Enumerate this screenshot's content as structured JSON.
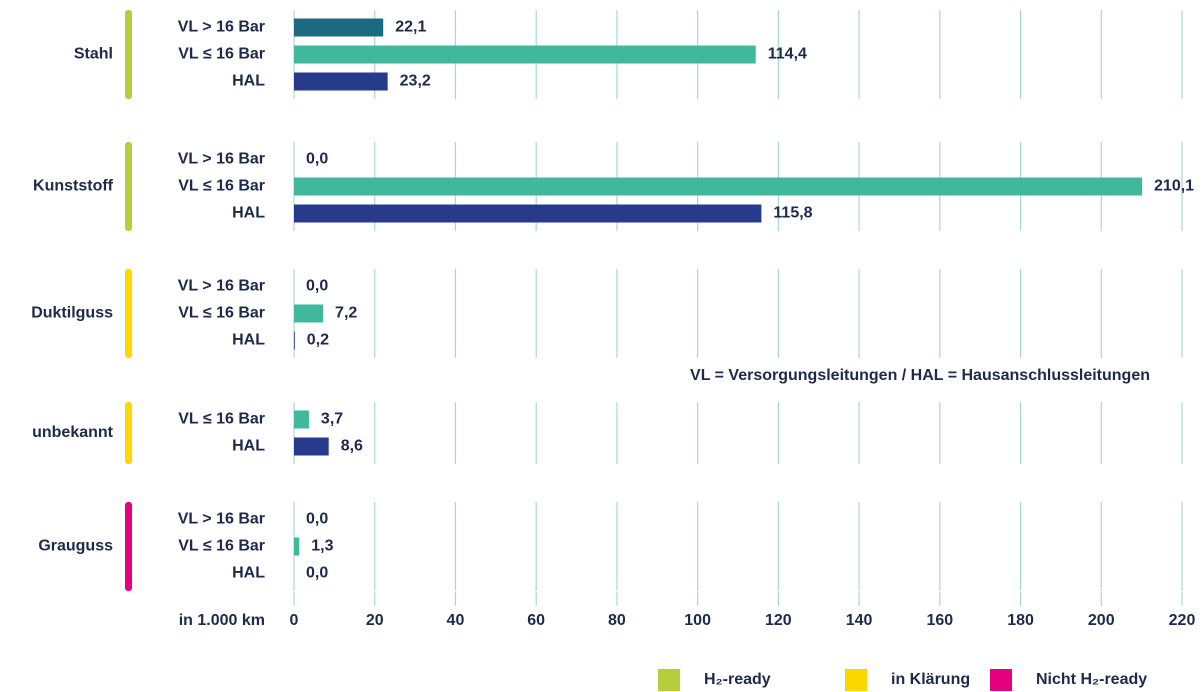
{
  "chart_data": {
    "type": "bar",
    "orientation": "horizontal",
    "groups": [
      {
        "name": "Stahl",
        "color": "#b5cf3a",
        "categories": [
          "VL > 16 Bar",
          "VL ≤ 16 Bar",
          "HAL"
        ],
        "colors": [
          "#1b6a7f",
          "#3fb89b",
          "#283a8c"
        ],
        "values": [
          22.1,
          114.4,
          23.2
        ],
        "value_labels": [
          "22,1",
          "114,4",
          "23,2"
        ]
      },
      {
        "name": "Kunststoff",
        "color": "#b5cf3a",
        "categories": [
          "VL > 16 Bar",
          "VL ≤ 16 Bar",
          "HAL"
        ],
        "colors": [
          "#1b6a7f",
          "#3fb89b",
          "#283a8c"
        ],
        "values": [
          0.0,
          210.1,
          115.8
        ],
        "value_labels": [
          "0,0",
          "210,1",
          "115,8"
        ]
      },
      {
        "name": "Duktilguss",
        "color": "#fcd800",
        "categories": [
          "VL > 16 Bar",
          "VL ≤ 16 Bar",
          "HAL"
        ],
        "colors": [
          "#1b6a7f",
          "#3fb89b",
          "#283a8c"
        ],
        "values": [
          0.0,
          7.2,
          0.2
        ],
        "value_labels": [
          "0,0",
          "7,2",
          "0,2"
        ]
      },
      {
        "name": "unbekannt",
        "color": "#fcd800",
        "categories": [
          "VL ≤ 16 Bar",
          "HAL"
        ],
        "colors": [
          "#3fb89b",
          "#283a8c"
        ],
        "values": [
          3.7,
          8.6
        ],
        "value_labels": [
          "3,7",
          "8,6"
        ]
      },
      {
        "name": "Grauguss",
        "color": "#e5007e",
        "categories": [
          "VL > 16 Bar",
          "VL ≤ 16 Bar",
          "HAL"
        ],
        "colors": [
          "#1b6a7f",
          "#3fb89b",
          "#283a8c"
        ],
        "values": [
          0.0,
          1.3,
          0.0
        ],
        "value_labels": [
          "0,0",
          "1,3",
          "0,0"
        ]
      }
    ],
    "xlabel": "in 1.000 km",
    "xlim": [
      0,
      220
    ],
    "xticks": [
      0,
      20,
      40,
      60,
      80,
      100,
      120,
      140,
      160,
      180,
      200,
      220
    ],
    "grid": true,
    "annotation": "VL = Versorgungsleitungen / HAL = Hausanschlussleitungen",
    "legend": [
      {
        "name": "H₂-ready",
        "color": "#b5cf3a"
      },
      {
        "name": "in Klärung",
        "color": "#fcd800"
      },
      {
        "name": "Nicht H₂-ready",
        "color": "#e5007e"
      }
    ]
  }
}
